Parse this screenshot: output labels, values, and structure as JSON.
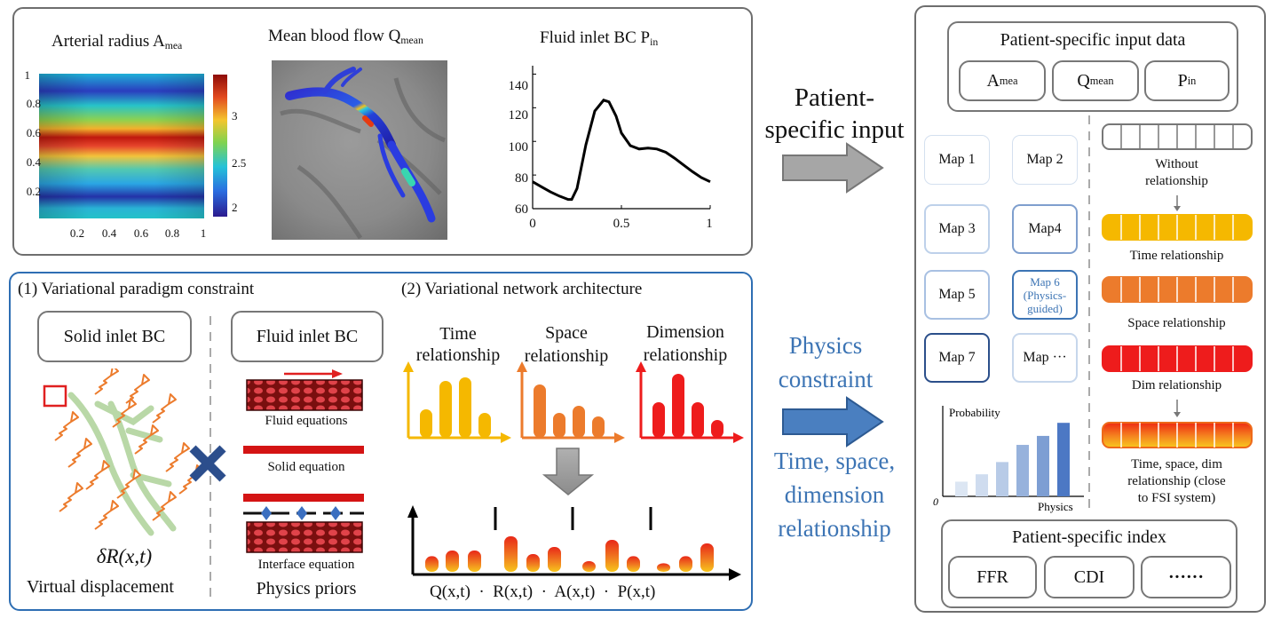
{
  "top_panel": {
    "heatmap": {
      "title_main": "Arterial radius A",
      "title_sub": "mea",
      "y_ticks": [
        "1",
        "0.8",
        "0.6",
        "0.4",
        "0.2"
      ],
      "x_ticks": [
        "0.2",
        "0.4",
        "0.6",
        "0.8",
        "1"
      ],
      "colorbar_ticks": [
        "3",
        "2.5",
        "2"
      ]
    },
    "flow": {
      "title_main": "Mean blood flow Q",
      "title_sub": "mean"
    },
    "pressure": {
      "title_main": "Fluid inlet BC P",
      "title_sub": "in",
      "y_ticks": [
        "140",
        "120",
        "100",
        "80",
        "60"
      ],
      "x_ticks": [
        "0",
        "0.5",
        "1"
      ]
    }
  },
  "chart_data": {
    "type": "line",
    "title": "Fluid inlet BC Pin",
    "xlim": [
      0,
      1
    ],
    "ylim": [
      60,
      145
    ],
    "x": [
      0.0,
      0.05,
      0.1,
      0.15,
      0.2,
      0.22,
      0.25,
      0.3,
      0.35,
      0.4,
      0.43,
      0.47,
      0.5,
      0.55,
      0.6,
      0.65,
      0.7,
      0.75,
      0.8,
      0.85,
      0.9,
      0.95,
      1.0
    ],
    "y": [
      76,
      73,
      70,
      67.5,
      65.5,
      65.5,
      72,
      98,
      118,
      124.5,
      123.5,
      115,
      105,
      97.5,
      95.5,
      96,
      95.5,
      93.5,
      90,
      86,
      82,
      78.5,
      76
    ],
    "color": "#000000"
  },
  "labels": {
    "patient_specific_input": [
      "Patient-",
      "specific input"
    ],
    "physics_constraint": [
      "Physics",
      "constraint"
    ],
    "time_space_dimension": [
      "Time, space,",
      "dimension",
      "relationship"
    ]
  },
  "bottom_panel": {
    "title1": "(1) Variational paradigm constraint",
    "title2": "(2) Variational network architecture",
    "solid_inlet": "Solid inlet BC",
    "fluid_inlet": "Fluid inlet BC",
    "fluid_equations": "Fluid equations",
    "solid_equation": "Solid equation",
    "interface_equation": "Interface equation",
    "physics_priors": "Physics priors",
    "delta_r": "δR(x,t)",
    "virtual_displacement": "Virtual displacement",
    "time_rel": [
      "Time",
      "relationship"
    ],
    "space_rel": [
      "Space",
      "relationship"
    ],
    "dim_rel": [
      "Dimension",
      "relationship"
    ],
    "formula": [
      "Q(x,t)",
      "·",
      "R(x,t)",
      "·",
      "A(x,t)",
      "·",
      "P(x,t)"
    ],
    "bar_chart_values": {
      "time": [
        40,
        80,
        85,
        35
      ],
      "space": [
        75,
        35,
        45,
        30
      ],
      "dimension": [
        50,
        90,
        50,
        25
      ],
      "combined": [
        22,
        30,
        30,
        50,
        25,
        35,
        15,
        45,
        22,
        12,
        22,
        40
      ]
    }
  },
  "right_panel": {
    "input_title": "Patient-specific input data",
    "inputs": [
      {
        "main": "A",
        "sub": "mea"
      },
      {
        "main": "Q",
        "sub": "mean"
      },
      {
        "main": "P",
        "sub": "in"
      }
    ],
    "maps": [
      "Map 1",
      "Map 2",
      "Map 3",
      "Map4",
      "Map 5",
      "Map 6 (Physics-guided)",
      "Map 7",
      "Map ···"
    ],
    "map6_lines": [
      "Map 6",
      "(Physics-",
      "guided)"
    ],
    "without_relationship": [
      "Without",
      "relationship"
    ],
    "time_relationship": "Time relationship",
    "space_relationship": "Space relationship",
    "dim_relationship": "Dim relationship",
    "full_relationship": [
      "Time, space, dim",
      "relationship (close",
      "to FSI system)"
    ],
    "probability_label": "Probability",
    "physics_label": "Physics",
    "origin_label": "0",
    "probability_values": [
      0.18,
      0.27,
      0.42,
      0.63,
      0.74,
      0.9
    ],
    "index_title": "Patient-specific index",
    "indices": [
      "FFR",
      "CDI",
      "······"
    ]
  },
  "colors": {
    "time": "#f5b800",
    "space": "#ec7b2c",
    "dimension": "#ee1c1c",
    "accent_blue": "#3c74b4",
    "arrow_gray": "#a6a6a6",
    "arrow_blue": "#4a7fc0"
  }
}
